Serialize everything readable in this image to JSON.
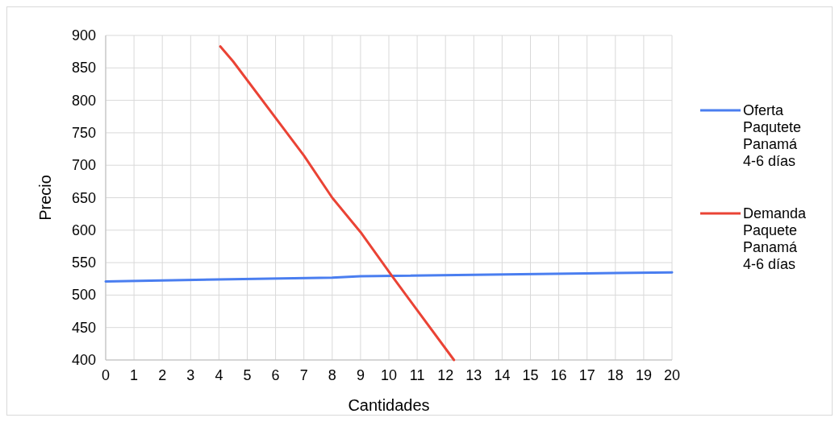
{
  "chart_data": {
    "type": "line",
    "xlabel": "Cantidades",
    "ylabel": "Precio",
    "xlim": [
      0,
      20
    ],
    "ylim": [
      400,
      900
    ],
    "xticks": [
      0,
      1,
      2,
      3,
      4,
      5,
      6,
      7,
      8,
      9,
      10,
      11,
      12,
      13,
      14,
      15,
      16,
      17,
      18,
      19,
      20
    ],
    "yticks": [
      400,
      450,
      500,
      550,
      600,
      650,
      700,
      750,
      800,
      850,
      900
    ],
    "grid": true,
    "legend": "right",
    "series": [
      {
        "name": "Oferta Paqutete Panamá 4-6 días",
        "color": "#4a7ef0",
        "x": [
          0,
          8,
          9,
          20
        ],
        "values": [
          521,
          527,
          529,
          535
        ]
      },
      {
        "name": "Demanda Paquete Panamá 4-6 días",
        "color": "#ea4335",
        "x": [
          4.05,
          4.5,
          7,
          8,
          9,
          10.1,
          12.3
        ],
        "values": [
          883,
          860,
          715,
          650,
          597,
          530,
          400
        ]
      }
    ]
  }
}
